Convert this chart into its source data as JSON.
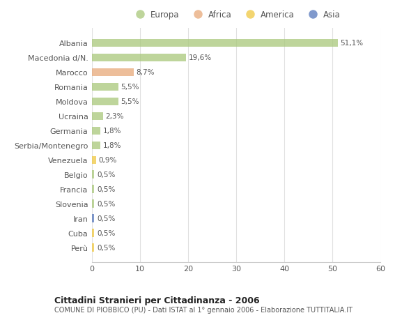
{
  "categories": [
    "Albania",
    "Macedonia d/N.",
    "Marocco",
    "Romania",
    "Moldova",
    "Ucraina",
    "Germania",
    "Serbia/Montenegro",
    "Venezuela",
    "Belgio",
    "Francia",
    "Slovenia",
    "Iran",
    "Cuba",
    "Perù"
  ],
  "values": [
    51.1,
    19.6,
    8.7,
    5.5,
    5.5,
    2.3,
    1.8,
    1.8,
    0.9,
    0.5,
    0.5,
    0.5,
    0.5,
    0.5,
    0.5
  ],
  "labels": [
    "51,1%",
    "19,6%",
    "8,7%",
    "5,5%",
    "5,5%",
    "2,3%",
    "1,8%",
    "1,8%",
    "0,9%",
    "0,5%",
    "0,5%",
    "0,5%",
    "0,5%",
    "0,5%",
    "0,5%"
  ],
  "continent": [
    "Europa",
    "Europa",
    "Africa",
    "Europa",
    "Europa",
    "Europa",
    "Europa",
    "Europa",
    "America",
    "Europa",
    "Europa",
    "Europa",
    "Asia",
    "America",
    "America"
  ],
  "colors": {
    "Europa": "#a8c87a",
    "Africa": "#e8a878",
    "America": "#f0c840",
    "Asia": "#5577bb"
  },
  "title": "Cittadini Stranieri per Cittadinanza - 2006",
  "subtitle": "COMUNE DI PIOBBICO (PU) - Dati ISTAT al 1° gennaio 2006 - Elaborazione TUTTITALIA.IT",
  "xlim": [
    0,
    60
  ],
  "xticks": [
    0,
    10,
    20,
    30,
    40,
    50,
    60
  ],
  "bg_color": "#ffffff",
  "grid_color": "#e0e0e0",
  "bar_alpha": 0.75,
  "legend_entries": [
    "Europa",
    "Africa",
    "America",
    "Asia"
  ]
}
